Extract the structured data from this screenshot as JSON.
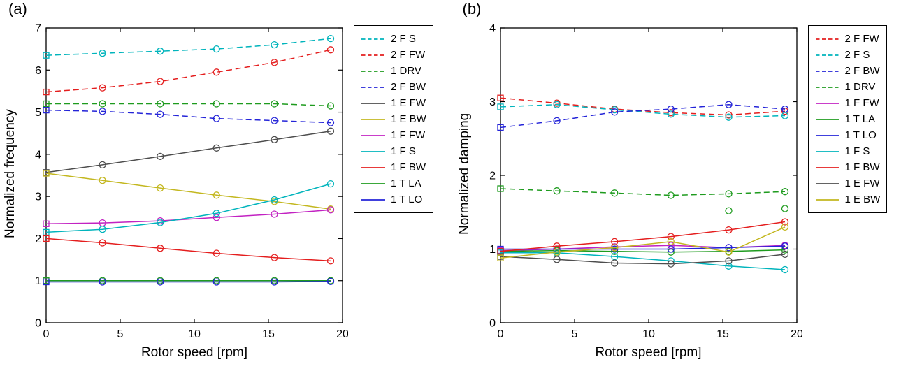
{
  "chart_data": [
    {
      "type": "line",
      "panel_label": "(a)",
      "xlabel": "Rotor speed [rpm]",
      "ylabel": "Normalized frequency",
      "xlim": [
        0,
        20
      ],
      "ylim": [
        0,
        7
      ],
      "xticks": [
        0,
        5,
        10,
        15,
        20
      ],
      "yticks": [
        0,
        1,
        2,
        3,
        4,
        5,
        6,
        7
      ],
      "x": [
        0,
        3.8,
        7.7,
        11.5,
        15.4,
        19.2
      ],
      "legend_position": "right-outside",
      "grid": false,
      "marker_first": "square",
      "marker_rest": "circle",
      "series": [
        {
          "name": "2 F S",
          "color": "#00b4bc",
          "style": "dashed",
          "values": [
            6.35,
            6.4,
            6.45,
            6.5,
            6.6,
            6.75
          ]
        },
        {
          "name": "2 F FW",
          "color": "#e41e1e",
          "style": "dashed",
          "values": [
            5.48,
            5.58,
            5.73,
            5.95,
            6.18,
            6.48
          ]
        },
        {
          "name": "1 DRV",
          "color": "#1e9b1e",
          "style": "dashed",
          "values": [
            5.2,
            5.2,
            5.2,
            5.2,
            5.2,
            5.15
          ]
        },
        {
          "name": "2 F BW",
          "color": "#2424d8",
          "style": "dashed",
          "values": [
            5.05,
            5.02,
            4.95,
            4.85,
            4.8,
            4.75
          ]
        },
        {
          "name": "1 E FW",
          "color": "#4d4d4d",
          "style": "solid",
          "values": [
            3.57,
            3.75,
            3.95,
            4.15,
            4.35,
            4.55
          ]
        },
        {
          "name": "1 E BW",
          "color": "#c3b71f",
          "style": "solid",
          "values": [
            3.55,
            3.38,
            3.2,
            3.03,
            2.88,
            2.7
          ]
        },
        {
          "name": "1 F FW",
          "color": "#c222c2",
          "style": "solid",
          "values": [
            2.35,
            2.37,
            2.42,
            2.5,
            2.58,
            2.68
          ]
        },
        {
          "name": "1 F S",
          "color": "#00b4bc",
          "style": "solid",
          "values": [
            2.15,
            2.22,
            2.38,
            2.6,
            2.92,
            3.3
          ]
        },
        {
          "name": "1 F BW",
          "color": "#e41e1e",
          "style": "solid",
          "values": [
            2.0,
            1.9,
            1.77,
            1.65,
            1.55,
            1.47
          ]
        },
        {
          "name": "1 T LA",
          "color": "#1e9b1e",
          "style": "solid",
          "values": [
            1.0,
            1.0,
            1.0,
            1.0,
            1.0,
            1.0
          ]
        },
        {
          "name": "1 T LO",
          "color": "#2424d8",
          "style": "solid",
          "values": [
            0.97,
            0.97,
            0.97,
            0.97,
            0.97,
            0.98
          ]
        }
      ],
      "extra_points": []
    },
    {
      "type": "line",
      "panel_label": "(b)",
      "xlabel": "Rotor speed [rpm]",
      "ylabel": "Normalized damping",
      "xlim": [
        0,
        20
      ],
      "ylim": [
        0,
        4
      ],
      "xticks": [
        0,
        5,
        10,
        15,
        20
      ],
      "yticks": [
        0,
        1,
        2,
        3,
        4
      ],
      "x": [
        0,
        3.8,
        7.7,
        11.5,
        15.4,
        19.2
      ],
      "legend_position": "right-outside",
      "grid": false,
      "marker_first": "square",
      "marker_rest": "circle",
      "series": [
        {
          "name": "2 F FW",
          "color": "#e41e1e",
          "style": "dashed",
          "values": [
            3.05,
            2.98,
            2.9,
            2.85,
            2.82,
            2.87
          ]
        },
        {
          "name": "2 F S",
          "color": "#00b4bc",
          "style": "dashed",
          "values": [
            2.93,
            2.96,
            2.89,
            2.83,
            2.79,
            2.81
          ]
        },
        {
          "name": "2 F BW",
          "color": "#2424d8",
          "style": "dashed",
          "values": [
            2.65,
            2.74,
            2.86,
            2.9,
            2.96,
            2.9
          ]
        },
        {
          "name": "1 DRV",
          "color": "#1e9b1e",
          "style": "dashed",
          "values": [
            1.82,
            1.79,
            1.76,
            1.73,
            1.75,
            1.78
          ]
        },
        {
          "name": "1 F FW",
          "color": "#c222c2",
          "style": "solid",
          "values": [
            0.98,
            1.0,
            1.03,
            1.05,
            1.02,
            1.05
          ]
        },
        {
          "name": "1 T LA",
          "color": "#1e9b1e",
          "style": "solid",
          "values": [
            0.97,
            0.98,
            0.97,
            0.96,
            0.97,
            0.99
          ]
        },
        {
          "name": "1 T LO",
          "color": "#2424d8",
          "style": "solid",
          "values": [
            1.0,
            1.0,
            1.0,
            1.0,
            1.02,
            1.04
          ]
        },
        {
          "name": "1 F S",
          "color": "#00b4bc",
          "style": "solid",
          "values": [
            0.95,
            0.95,
            0.9,
            0.84,
            0.77,
            0.72
          ]
        },
        {
          "name": "1 F BW",
          "color": "#e41e1e",
          "style": "solid",
          "values": [
            0.97,
            1.04,
            1.1,
            1.17,
            1.26,
            1.37
          ]
        },
        {
          "name": "1 E FW",
          "color": "#4d4d4d",
          "style": "solid",
          "values": [
            0.9,
            0.86,
            0.81,
            0.8,
            0.84,
            0.93
          ]
        },
        {
          "name": "1 E BW",
          "color": "#c3b71f",
          "style": "solid",
          "values": [
            0.88,
            0.96,
            1.02,
            1.1,
            0.96,
            1.3
          ]
        }
      ],
      "extra_points": [
        {
          "color": "#1e9b1e",
          "x": 15.4,
          "y": 1.52
        },
        {
          "color": "#1e9b1e",
          "x": 19.2,
          "y": 1.55
        }
      ]
    }
  ]
}
